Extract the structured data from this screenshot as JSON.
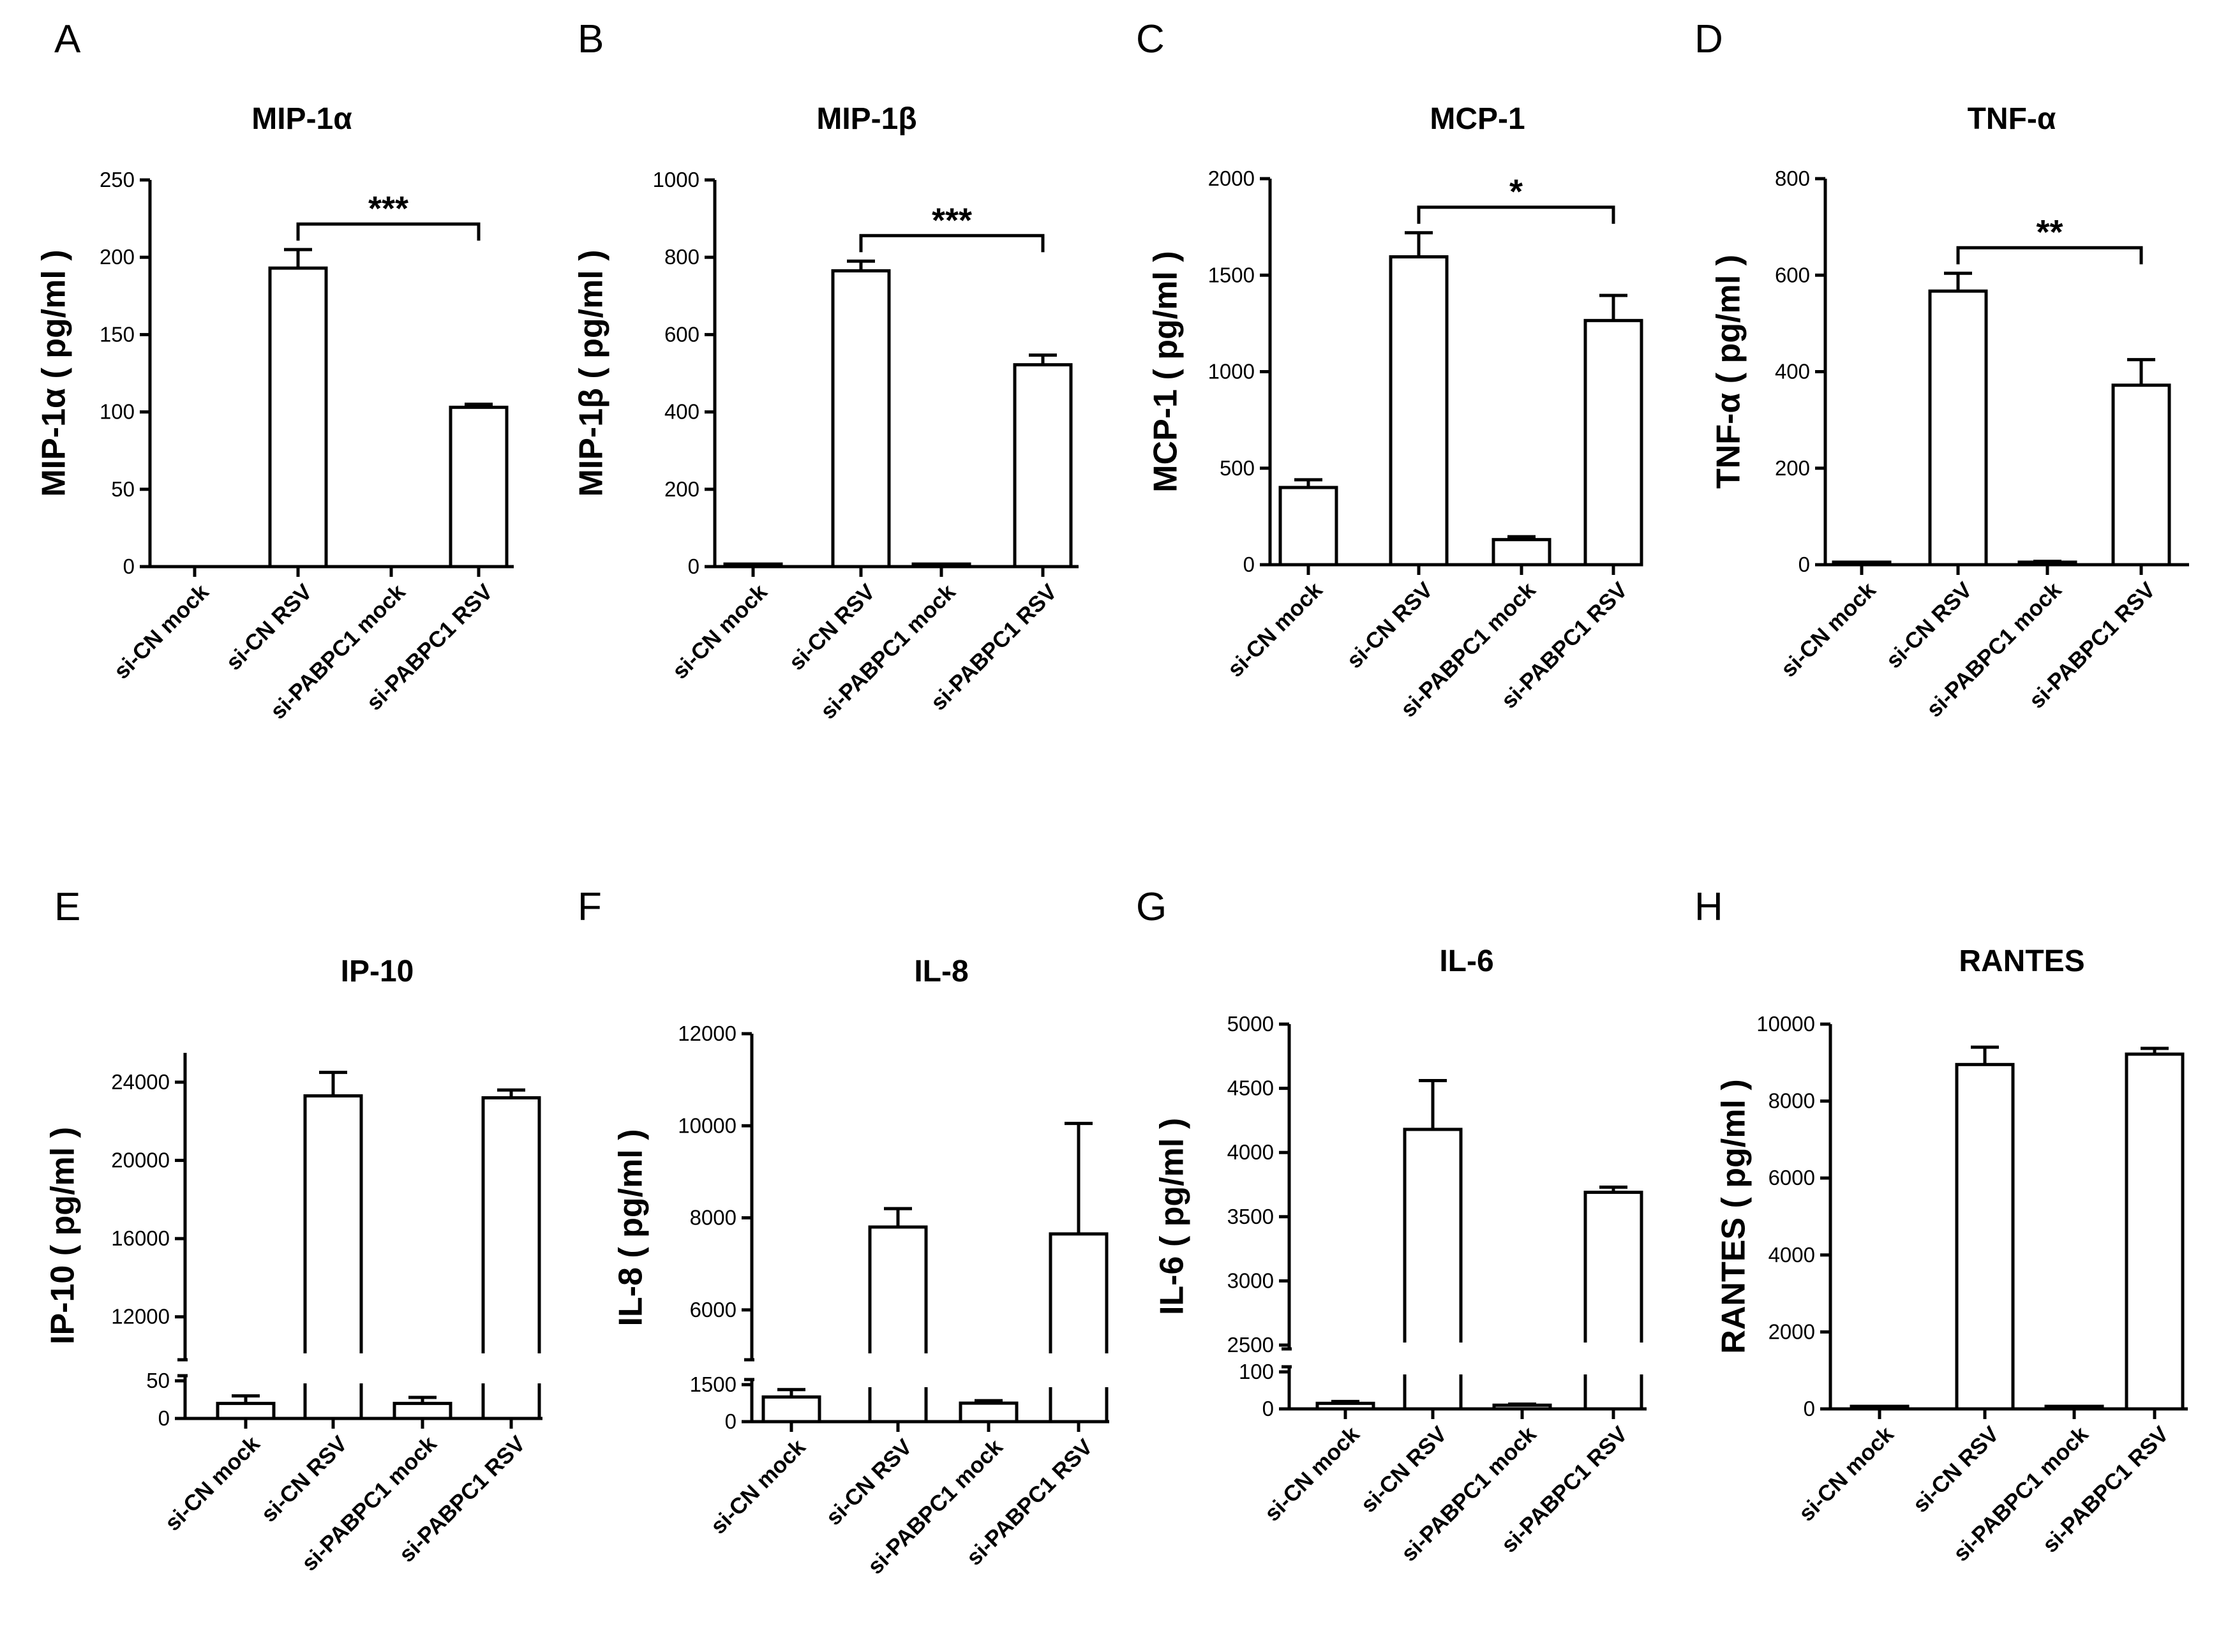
{
  "figure_labels": [
    "A",
    "B",
    "C",
    "D",
    "E",
    "F",
    "G",
    "H"
  ],
  "chart_data": [
    {
      "type": "bar",
      "panel": "A",
      "title": "MIP-1α",
      "ylabel": "MIP-1α ( pg/ml )",
      "categories": [
        "si-CN mock",
        "si-CN RSV",
        "si-PABPC1 mock",
        "si-PABPC1 RSV"
      ],
      "values": [
        0,
        193,
        0,
        103
      ],
      "errors": [
        0,
        12,
        0,
        2
      ],
      "ylim": [
        0,
        250
      ],
      "yticks": [
        0,
        50,
        100,
        150,
        200,
        250
      ],
      "significance": {
        "from": 1,
        "to": 3,
        "label": "***"
      }
    },
    {
      "type": "bar",
      "panel": "B",
      "title": "MIP-1β",
      "ylabel": "MIP-1β ( pg/ml )",
      "categories": [
        "si-CN mock",
        "si-CN RSV",
        "si-PABPC1 mock",
        "si-PABPC1 RSV"
      ],
      "values": [
        3,
        765,
        3,
        522
      ],
      "errors": [
        0,
        25,
        0,
        25
      ],
      "ylim": [
        0,
        1000
      ],
      "yticks": [
        0,
        200,
        400,
        600,
        800,
        1000
      ],
      "significance": {
        "from": 1,
        "to": 3,
        "label": "***"
      }
    },
    {
      "type": "bar",
      "panel": "C",
      "title": "MCP-1",
      "ylabel": "MCP-1 ( pg/ml )",
      "categories": [
        "si-CN mock",
        "si-CN RSV",
        "si-PABPC1 mock",
        "si-PABPC1 RSV"
      ],
      "values": [
        400,
        1595,
        130,
        1265
      ],
      "errors": [
        40,
        125,
        15,
        130
      ],
      "ylim": [
        0,
        2000
      ],
      "yticks": [
        0,
        500,
        1000,
        1500,
        2000
      ],
      "significance": {
        "from": 1,
        "to": 3,
        "label": "*"
      }
    },
    {
      "type": "bar",
      "panel": "D",
      "title": "TNF-α",
      "ylabel": "TNF-α ( pg/ml )",
      "categories": [
        "si-CN mock",
        "si-CN RSV",
        "si-PABPC1 mock",
        "si-PABPC1 RSV"
      ],
      "values": [
        2,
        567,
        5,
        372
      ],
      "errors": [
        0,
        37,
        2,
        53
      ],
      "ylim": [
        0,
        800
      ],
      "yticks": [
        0,
        200,
        400,
        600,
        800
      ],
      "significance": {
        "from": 1,
        "to": 3,
        "label": "**"
      }
    },
    {
      "type": "bar",
      "panel": "E",
      "title": "IP-10",
      "ylabel": "IP-10 ( pg/ml )",
      "categories": [
        "si-CN mock",
        "si-CN RSV",
        "si-PABPC1 mock",
        "si-PABPC1 RSV"
      ],
      "values": [
        20,
        23300,
        20,
        23200
      ],
      "errors": [
        10,
        1200,
        8,
        400
      ],
      "broken_axis": {
        "lower": [
          0,
          50
        ],
        "upper": [
          10000,
          25500
        ]
      },
      "yticks_lower": [
        0,
        50
      ],
      "yticks_upper": [
        12000,
        16000,
        20000,
        24000
      ]
    },
    {
      "type": "bar",
      "panel": "F",
      "title": "IL-8",
      "ylabel": "IL-8 ( pg/ml )",
      "categories": [
        "si-CN mock",
        "si-CN RSV",
        "si-PABPC1 mock",
        "si-PABPC1 RSV"
      ],
      "values": [
        1000,
        7800,
        750,
        7650
      ],
      "errors": [
        300,
        400,
        100,
        2400
      ],
      "broken_axis": {
        "lower": [
          0,
          1500
        ],
        "upper": [
          5000,
          12000
        ]
      },
      "yticks_lower": [
        0,
        1500
      ],
      "yticks_upper": [
        6000,
        8000,
        10000,
        12000
      ]
    },
    {
      "type": "bar",
      "panel": "G",
      "title": "IL-6",
      "ylabel": "IL-6 ( pg/ml )",
      "categories": [
        "si-CN mock",
        "si-CN RSV",
        "si-PABPC1 mock",
        "si-PABPC1 RSV"
      ],
      "values": [
        15,
        4180,
        10,
        3690
      ],
      "errors": [
        5,
        380,
        3,
        40
      ],
      "broken_axis": {
        "lower": [
          0,
          100
        ],
        "upper": [
          2500,
          5000
        ]
      },
      "yticks_lower": [
        0,
        100
      ],
      "yticks_upper": [
        2500,
        3000,
        3500,
        4000,
        4500,
        5000
      ]
    },
    {
      "type": "bar",
      "panel": "H",
      "title": "RANTES",
      "ylabel": "RANTES ( pg/ml )",
      "categories": [
        "si-CN mock",
        "si-CN RSV",
        "si-PABPC1 mock",
        "si-PABPC1 RSV"
      ],
      "values": [
        20,
        8950,
        20,
        9220
      ],
      "errors": [
        0,
        450,
        0,
        150
      ],
      "ylim": [
        0,
        10000
      ],
      "yticks": [
        0,
        2000,
        4000,
        6000,
        8000,
        10000
      ]
    }
  ]
}
